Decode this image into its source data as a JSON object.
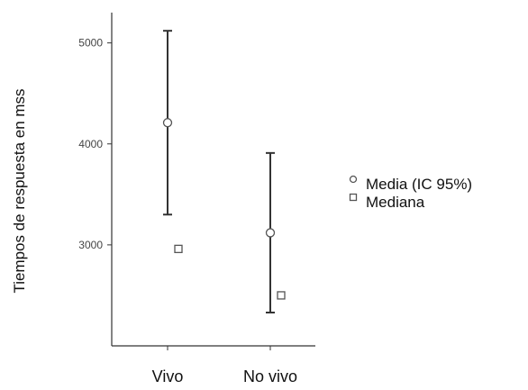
{
  "chart_data": {
    "type": "scatter",
    "title": "",
    "xlabel": "",
    "ylabel": "Tiempos de respuesta en  mss",
    "categories": [
      "Vivo",
      "No vivo"
    ],
    "ylim": [
      2000,
      5300
    ],
    "yticks": [
      3000,
      4000,
      5000
    ],
    "grid": false,
    "legend_position": "right",
    "series": [
      {
        "name": "Media (IC 95%)",
        "marker": "circle",
        "values": [
          4210,
          3120
        ],
        "ci_low": [
          3300,
          2330
        ],
        "ci_high": [
          5120,
          3910
        ]
      },
      {
        "name": "Mediana",
        "marker": "square",
        "values": [
          2960,
          2500
        ]
      }
    ],
    "colors": {
      "axis": "#333333",
      "marker_stroke": "#555555",
      "marker_fill": "#ffffff",
      "text": "#111111"
    }
  }
}
